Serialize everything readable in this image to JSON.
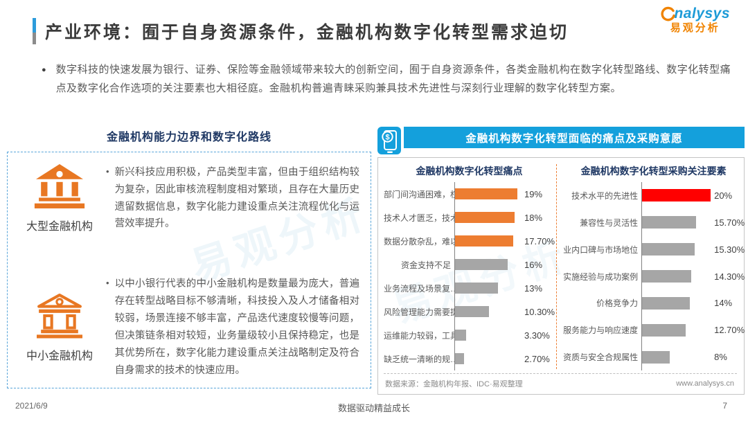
{
  "page": {
    "title": "产业环境：囿于自身资源条件，金融机构数字化转型需求迫切",
    "intro_bullet": "●",
    "intro": "数字科技的快速发展为银行、证券、保险等金融领域带来较大的创新空间，囿于自身资源条件，各类金融机构在数字化转型路线、数字化转型痛点及数字化合作选项的关注要素也大相径庭。金融机构普遍青睐采购兼具技术先进性与深刻行业理解的数字化转型方案。",
    "watermark": "易观分析",
    "footer": {
      "date": "2021/6/9",
      "slogan": "数据驱动精益成长",
      "page_number": "7"
    }
  },
  "logo": {
    "brand": "nalysys",
    "brand_cn": "易观分析"
  },
  "left_panel": {
    "title": "金融机构能力边界和数字化路线",
    "item_bullet": "•",
    "items": [
      {
        "label": "大型金融机构",
        "icon": "bank-solid-icon",
        "text": "新兴科技应用积极，产品类型丰富，但由于组织结构较为复杂，因此审核流程制度相对繁琐，且存在大量历史遗留数据信息，数字化能力建设重点关注流程优化与运营效率提升。"
      },
      {
        "label": "中小金融机构",
        "icon": "bank-outline-icon",
        "text": "以中小银行代表的中小金融机构是数量最为庞大，普遍存在转型战略目标不够清晰，科技投入及人才储备相对较弱，场景连接不够丰富，产品迭代速度较慢等问题，但决策链条相对较短，业务量级较小且保持稳定，也是其优势所在，数字化能力建设重点关注战略制定及符合自身需求的技术的快速应用。"
      }
    ]
  },
  "right_panel": {
    "header": "金融机构数字化转型面临的痛点及采购意愿",
    "header_icon": "mobile-payment-icon",
    "source": "数据来源：金融机构年报、IDC·易观整理",
    "website": "www.analysys.cn"
  },
  "colors": {
    "accent_blue": "#14A0DC",
    "pain_highlight_orange": "#ED7D31",
    "purchase_highlight_red": "#FF0000",
    "bar_gray": "#A6A6A6",
    "title_navy": "#1F3864",
    "logo_orange": "#F08300"
  },
  "chart_data": [
    {
      "type": "bar",
      "orientation": "horizontal",
      "title": "金融机构数字化转型痛点",
      "categories": [
        "部门间沟通困难，权…",
        "技术人才匮乏，技术…",
        "数据分散杂乱，难以…",
        "资金支持不足",
        "业务流程及场景复…",
        "风险管理能力需要提高",
        "运维能力较弱，工具…",
        "缺乏统一清晰的规…"
      ],
      "values": [
        19,
        18,
        17.7,
        16,
        13,
        10.3,
        3.3,
        2.7
      ],
      "labels": [
        "19%",
        "18%",
        "17.70%",
        "16%",
        "13%",
        "10.30%",
        "3.30%",
        "2.70%"
      ],
      "bar_colors": [
        "#ED7D31",
        "#ED7D31",
        "#ED7D31",
        "#A6A6A6",
        "#A6A6A6",
        "#A6A6A6",
        "#A6A6A6",
        "#A6A6A6"
      ],
      "xlim": [
        0,
        20
      ],
      "grid": false,
      "legend": false
    },
    {
      "type": "bar",
      "orientation": "horizontal",
      "title": "金融机构数字化转型采购关注要素",
      "categories": [
        "技术水平的先进性",
        "兼容性与灵活性",
        "业内口碑与市场地位",
        "实施经验与成功案例",
        "价格竞争力",
        "服务能力与响应速度",
        "资质与安全合规属性"
      ],
      "values": [
        20,
        15.7,
        15.3,
        14.3,
        14,
        12.7,
        8
      ],
      "labels": [
        "20%",
        "15.70%",
        "15.30%",
        "14.30%",
        "14%",
        "12.70%",
        "8%"
      ],
      "bar_colors": [
        "#FF0000",
        "#A6A6A6",
        "#A6A6A6",
        "#A6A6A6",
        "#A6A6A6",
        "#A6A6A6",
        "#A6A6A6"
      ],
      "xlim": [
        0,
        20
      ],
      "grid": false,
      "legend": false
    }
  ]
}
